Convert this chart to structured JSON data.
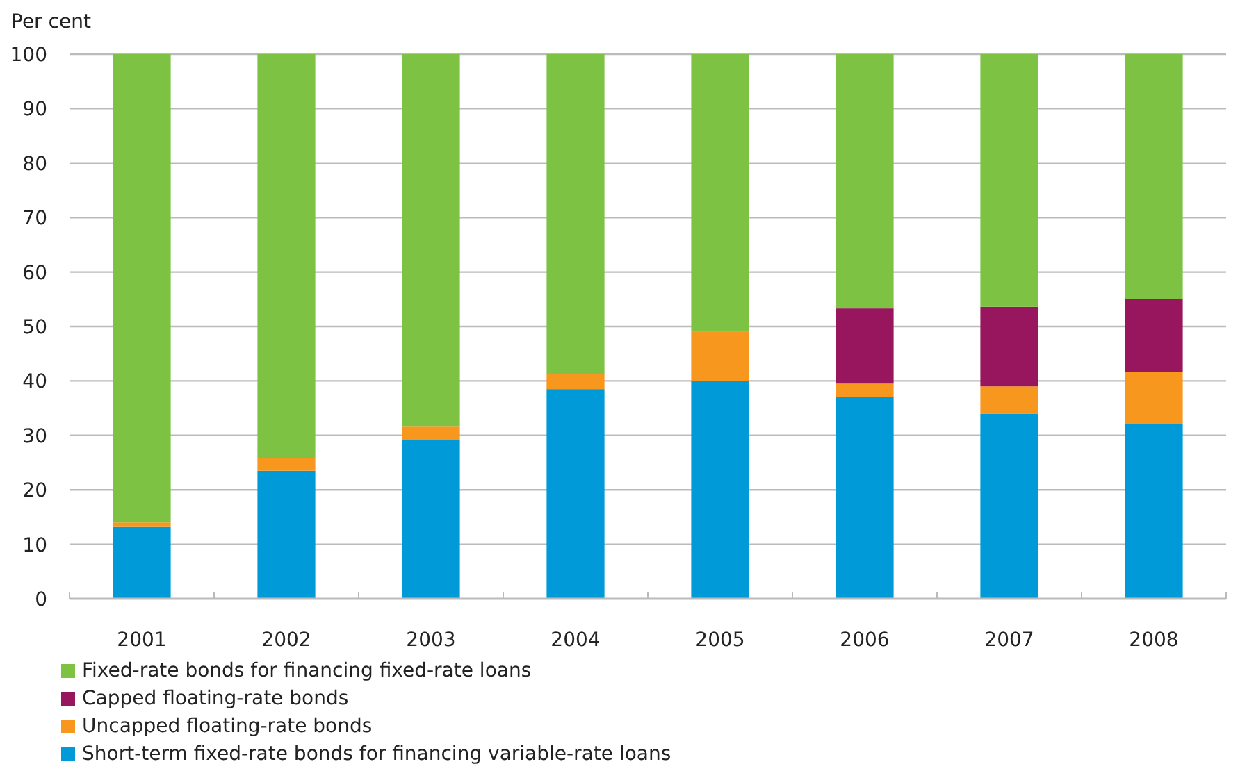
{
  "chart_data": {
    "type": "bar",
    "stacked": true,
    "ylabel": "Per cent",
    "categories": [
      "2001",
      "2002",
      "2003",
      "2004",
      "2005",
      "2006",
      "2007",
      "2008"
    ],
    "series": [
      {
        "name": "Short-term fixed-rate bonds for financing variable-rate loans",
        "color": "#009ad8",
        "values": [
          13.3,
          23.5,
          29.1,
          38.5,
          40,
          37,
          34,
          32.1
        ]
      },
      {
        "name": "Uncapped floating-rate bonds",
        "color": "#f7971e",
        "values": [
          0.7,
          2.3,
          2.5,
          2.8,
          9,
          2.5,
          5,
          9.5
        ]
      },
      {
        "name": "Capped floating-rate bonds",
        "color": "#98165d",
        "values": [
          0,
          0,
          0,
          0,
          0,
          13.8,
          14.6,
          13.5
        ]
      },
      {
        "name": "Fixed-rate bonds for financing fixed-rate loans",
        "color": "#7dc242",
        "values": [
          86,
          74.2,
          68.4,
          58.7,
          51,
          46.7,
          46.4,
          44.9
        ]
      }
    ],
    "ylim": [
      0,
      100
    ],
    "yticks": [
      0,
      10,
      20,
      30,
      40,
      50,
      60,
      70,
      80,
      90,
      100
    ],
    "grid": "y",
    "legend": "bottom"
  }
}
